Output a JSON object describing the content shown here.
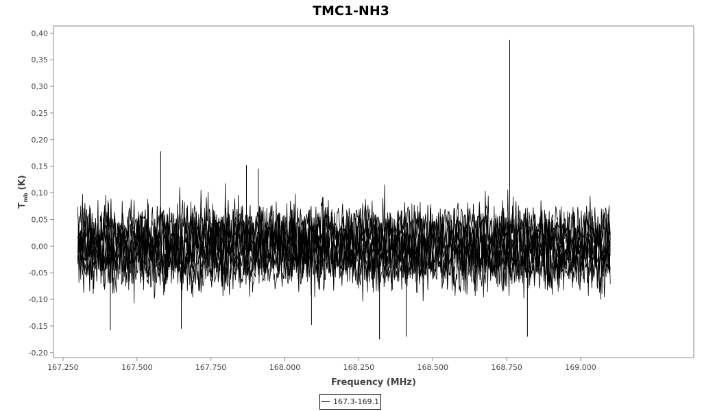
{
  "chart_data": {
    "type": "line",
    "title": "TMC1-NH3",
    "xlabel": "Frequency (MHz)",
    "ylabel_main": "T",
    "ylabel_sub": "mb",
    "ylabel_unit": "(K)",
    "xlim": [
      167.22,
      169.38
    ],
    "ylim": [
      -0.208,
      0.412
    ],
    "x_ticks": [
      167.25,
      167.5,
      167.75,
      168.0,
      168.25,
      168.5,
      168.75,
      169.0
    ],
    "x_tick_labels": [
      "167.250",
      "167.500",
      "167.750",
      "168.000",
      "168.250",
      "168.500",
      "168.750",
      "169.000"
    ],
    "y_ticks": [
      -0.2,
      -0.15,
      -0.1,
      -0.05,
      0.0,
      0.05,
      0.1,
      0.15,
      0.2,
      0.25,
      0.3,
      0.35,
      0.4
    ],
    "y_tick_labels": [
      "-0,20",
      "-0,15",
      "-0,10",
      "-0,05",
      "0,00",
      "0,05",
      "0,10",
      "0,15",
      "0,20",
      "0,25",
      "0,30",
      "0,35",
      "0,40"
    ],
    "grid": false,
    "legend_position": "bottom-center",
    "series": [
      {
        "name": "167.3-169.1",
        "x_range": [
          167.3,
          169.1
        ],
        "noise_rms": 0.055,
        "band_min": -0.11,
        "band_max": 0.1,
        "peaks": [
          {
            "x": 168.76,
            "y": 0.387
          },
          {
            "x": 167.58,
            "y": 0.178
          },
          {
            "x": 167.87,
            "y": 0.152
          },
          {
            "x": 167.91,
            "y": 0.145
          },
          {
            "x": 168.32,
            "y": -0.175
          },
          {
            "x": 168.41,
            "y": -0.17
          },
          {
            "x": 168.82,
            "y": -0.17
          },
          {
            "x": 167.41,
            "y": -0.158
          },
          {
            "x": 167.65,
            "y": -0.155
          },
          {
            "x": 168.09,
            "y": -0.148
          }
        ]
      }
    ],
    "line_color": "#000000"
  }
}
